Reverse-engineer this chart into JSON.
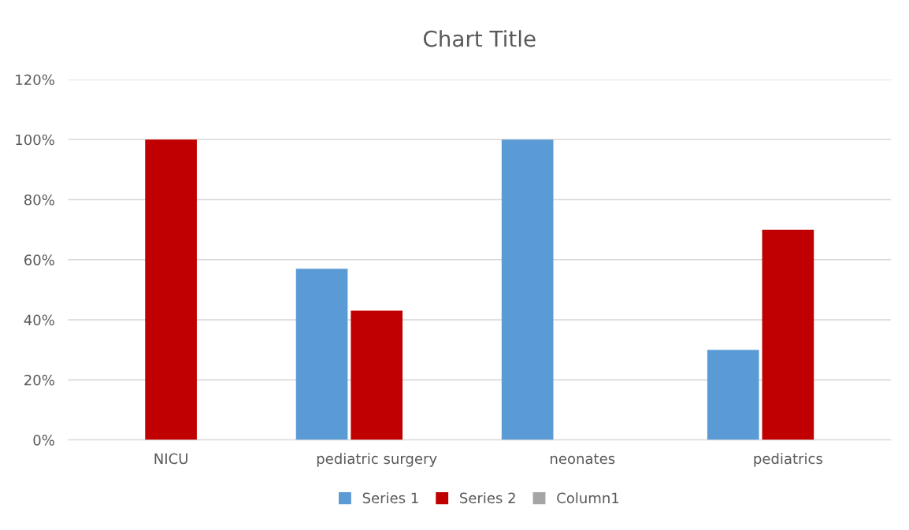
{
  "chart_data": {
    "type": "bar",
    "title": "Chart Title",
    "categories": [
      "NICU",
      "pediatric surgery",
      "neonates",
      "pediatrics"
    ],
    "series": [
      {
        "name": "Series 1",
        "color": "#5b9bd5",
        "values": [
          null,
          57,
          100,
          30
        ]
      },
      {
        "name": "Series 2",
        "color": "#c00000",
        "values": [
          100,
          43,
          null,
          70
        ]
      },
      {
        "name": "Column1",
        "color": "#a5a5a5",
        "values": [
          null,
          null,
          null,
          null
        ]
      }
    ],
    "ylim": [
      0,
      120
    ],
    "yticks": [
      {
        "value": 0,
        "label": "0%"
      },
      {
        "value": 20,
        "label": "20%"
      },
      {
        "value": 40,
        "label": "40%"
      },
      {
        "value": 60,
        "label": "60%"
      },
      {
        "value": 80,
        "label": "80%"
      },
      {
        "value": 100,
        "label": "100%"
      },
      {
        "value": 120,
        "label": "120%"
      }
    ],
    "grid": "y",
    "legend": "bottom"
  }
}
